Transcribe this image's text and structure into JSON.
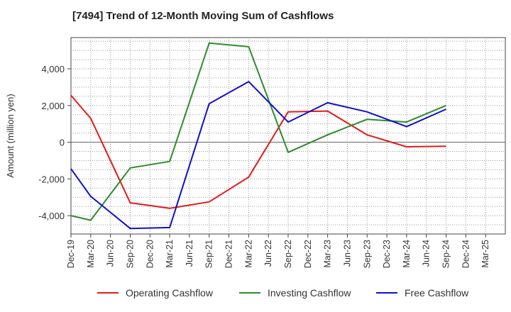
{
  "chart_data": {
    "type": "line",
    "title": "[7494]  Trend of 12-Month Moving Sum of Cashflows",
    "ylabel": "Amount (million yen)",
    "xlabel": "",
    "ylim": [
      -5000,
      5700
    ],
    "yticks": [
      -4000,
      -2000,
      0,
      2000,
      4000
    ],
    "ytick_labels": [
      "-4,000",
      "-2,000",
      "0",
      "2,000",
      "4,000"
    ],
    "categories": [
      "Dec-19",
      "Mar-20",
      "Jun-20",
      "Sep-20",
      "Dec-20",
      "Mar-21",
      "Jun-21",
      "Sep-21",
      "Dec-21",
      "Mar-22",
      "Jun-22",
      "Sep-22",
      "Dec-22",
      "Mar-23",
      "Jun-23",
      "Sep-23",
      "Dec-23",
      "Mar-24",
      "Jun-24",
      "Sep-24",
      "Dec-24",
      "Mar-25"
    ],
    "grid": true,
    "legend_position": "bottom",
    "series": [
      {
        "name": "Operating Cashflow",
        "color": "#e41a1c",
        "values": [
          2550,
          1300,
          null,
          -3300,
          null,
          -3600,
          null,
          -3250,
          null,
          -1900,
          null,
          1650,
          null,
          1700,
          null,
          400,
          null,
          -250,
          null,
          -220,
          null,
          null
        ]
      },
      {
        "name": "Investing Cashflow",
        "color": "#2e8b2e",
        "values": [
          -4000,
          -4250,
          null,
          -1400,
          null,
          -1050,
          null,
          5400,
          null,
          5200,
          null,
          -550,
          null,
          400,
          null,
          1250,
          null,
          1100,
          null,
          2000,
          null,
          null
        ]
      },
      {
        "name": "Free Cashflow",
        "color": "#1010cc",
        "values": [
          -1450,
          -2950,
          null,
          -4700,
          null,
          -4650,
          null,
          2100,
          null,
          3300,
          null,
          1100,
          null,
          2150,
          null,
          1650,
          null,
          850,
          null,
          1800,
          null,
          null
        ]
      }
    ]
  }
}
